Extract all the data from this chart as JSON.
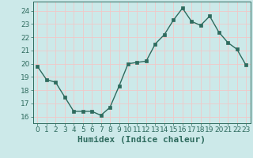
{
  "x": [
    0,
    1,
    2,
    3,
    4,
    5,
    6,
    7,
    8,
    9,
    10,
    11,
    12,
    13,
    14,
    15,
    16,
    17,
    18,
    19,
    20,
    21,
    22,
    23
  ],
  "y": [
    19.8,
    18.8,
    18.6,
    17.5,
    16.4,
    16.4,
    16.4,
    16.1,
    16.7,
    18.3,
    20.0,
    20.1,
    20.2,
    21.5,
    22.2,
    23.3,
    24.2,
    23.2,
    22.9,
    23.6,
    22.4,
    21.6,
    21.1,
    19.9
  ],
  "line_color": "#2e6b5e",
  "marker": "s",
  "marker_size": 2.5,
  "bg_color": "#cce9e9",
  "grid_color": "#f0c8c8",
  "tick_color": "#2e6b5e",
  "xlabel": "Humidex (Indice chaleur)",
  "xlabel_fontsize": 8,
  "ylim": [
    15.5,
    24.7
  ],
  "yticks": [
    16,
    17,
    18,
    19,
    20,
    21,
    22,
    23,
    24
  ],
  "xticks": [
    0,
    1,
    2,
    3,
    4,
    5,
    6,
    7,
    8,
    9,
    10,
    11,
    12,
    13,
    14,
    15,
    16,
    17,
    18,
    19,
    20,
    21,
    22,
    23
  ],
  "tick_fontsize": 6.5,
  "linewidth": 1.0
}
